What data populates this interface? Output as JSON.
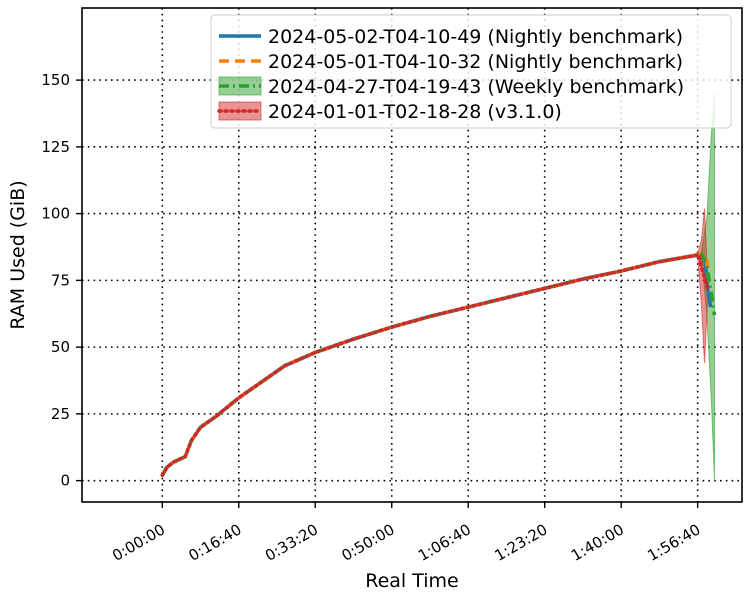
{
  "chart_data": {
    "type": "line",
    "title": "",
    "xlabel": "Real Time",
    "ylabel": "RAM Used (GiB)",
    "x_unit": "seconds of real time",
    "xlim": [
      -1050,
      7580
    ],
    "ylim": [
      -8,
      177
    ],
    "xticks": [
      {
        "value": 0,
        "label": "0:00:00"
      },
      {
        "value": 1000,
        "label": "0:16:40"
      },
      {
        "value": 2000,
        "label": "0:33:20"
      },
      {
        "value": 3000,
        "label": "0:50:00"
      },
      {
        "value": 4000,
        "label": "1:06:40"
      },
      {
        "value": 5000,
        "label": "1:23:20"
      },
      {
        "value": 6000,
        "label": "1:40:00"
      },
      {
        "value": 7000,
        "label": "1:56:40"
      }
    ],
    "yticks": [
      0,
      25,
      50,
      75,
      100,
      125,
      150
    ],
    "grid": true,
    "legend_position": "top-right",
    "series": [
      {
        "name": "2024-05-02-T04-10-49 (Nightly benchmark)",
        "color": "#1f77b4",
        "style": "solid",
        "x": [
          0,
          60,
          150,
          300,
          380,
          500,
          700,
          1000,
          1300,
          1600,
          2000,
          2500,
          3000,
          3500,
          4000,
          4500,
          5000,
          5500,
          6000,
          6500,
          6900,
          7050,
          7100,
          7130,
          7170
        ],
        "y": [
          2,
          5,
          7,
          9,
          15,
          20,
          24,
          31,
          37,
          43,
          48,
          53,
          57.5,
          61.5,
          65,
          68.5,
          72,
          75.5,
          78.5,
          82,
          84,
          84.5,
          82,
          72,
          65
        ]
      },
      {
        "name": "2024-05-01-T04-10-32 (Nightly benchmark)",
        "color": "#ff7f0e",
        "style": "dashed",
        "x": [
          0,
          60,
          150,
          300,
          380,
          500,
          700,
          1000,
          1300,
          1600,
          2000,
          2500,
          3000,
          3500,
          4000,
          4500,
          5000,
          5500,
          6000,
          6500,
          6900,
          7050,
          7110,
          7150
        ],
        "y": [
          2,
          5,
          7,
          9,
          15,
          20,
          24,
          31,
          37,
          43,
          48,
          53,
          57.5,
          61.5,
          65,
          68.5,
          72,
          75.5,
          78.5,
          82,
          84,
          85,
          84,
          75
        ]
      },
      {
        "name": "2024-04-27-T04-19-43 (Weekly benchmark)",
        "color": "#2ca02c",
        "style": "dashdot",
        "x": [
          0,
          60,
          150,
          300,
          380,
          500,
          700,
          1000,
          1300,
          1600,
          2000,
          2500,
          3000,
          3500,
          4000,
          4500,
          5000,
          5500,
          6000,
          6500,
          6900,
          7050,
          7120,
          7180,
          7220
        ],
        "y": [
          2,
          5,
          7,
          9,
          15,
          20,
          24,
          31,
          37,
          43,
          48,
          53,
          57.5,
          61.5,
          65,
          68.5,
          72,
          75.5,
          78.5,
          82,
          84,
          85,
          80,
          70,
          62
        ],
        "band_x": [
          7050,
          7120,
          7180,
          7220
        ],
        "band_lower": [
          84,
          62,
          30,
          0
        ],
        "band_upper": [
          86,
          98,
          130,
          145
        ]
      },
      {
        "name": "2024-01-01-T02-18-28 (v3.1.0)",
        "color": "#d62728",
        "style": "dotted",
        "x": [
          0,
          60,
          150,
          300,
          380,
          500,
          700,
          1000,
          1300,
          1600,
          2000,
          2500,
          3000,
          3500,
          4000,
          4500,
          5000,
          5500,
          6000,
          6500,
          6900,
          7020,
          7050,
          7090,
          7130
        ],
        "y": [
          2,
          5,
          7,
          9,
          15,
          20,
          24,
          31,
          37,
          43,
          48,
          53,
          57.5,
          61.5,
          65,
          68.5,
          72,
          75.5,
          78.5,
          82,
          84,
          84.5,
          80,
          76,
          72
        ],
        "band_x": [
          7000,
          7050,
          7090,
          7130
        ],
        "band_lower": [
          84,
          66,
          44,
          68
        ],
        "band_upper": [
          85,
          90,
          102,
          76
        ]
      }
    ]
  }
}
